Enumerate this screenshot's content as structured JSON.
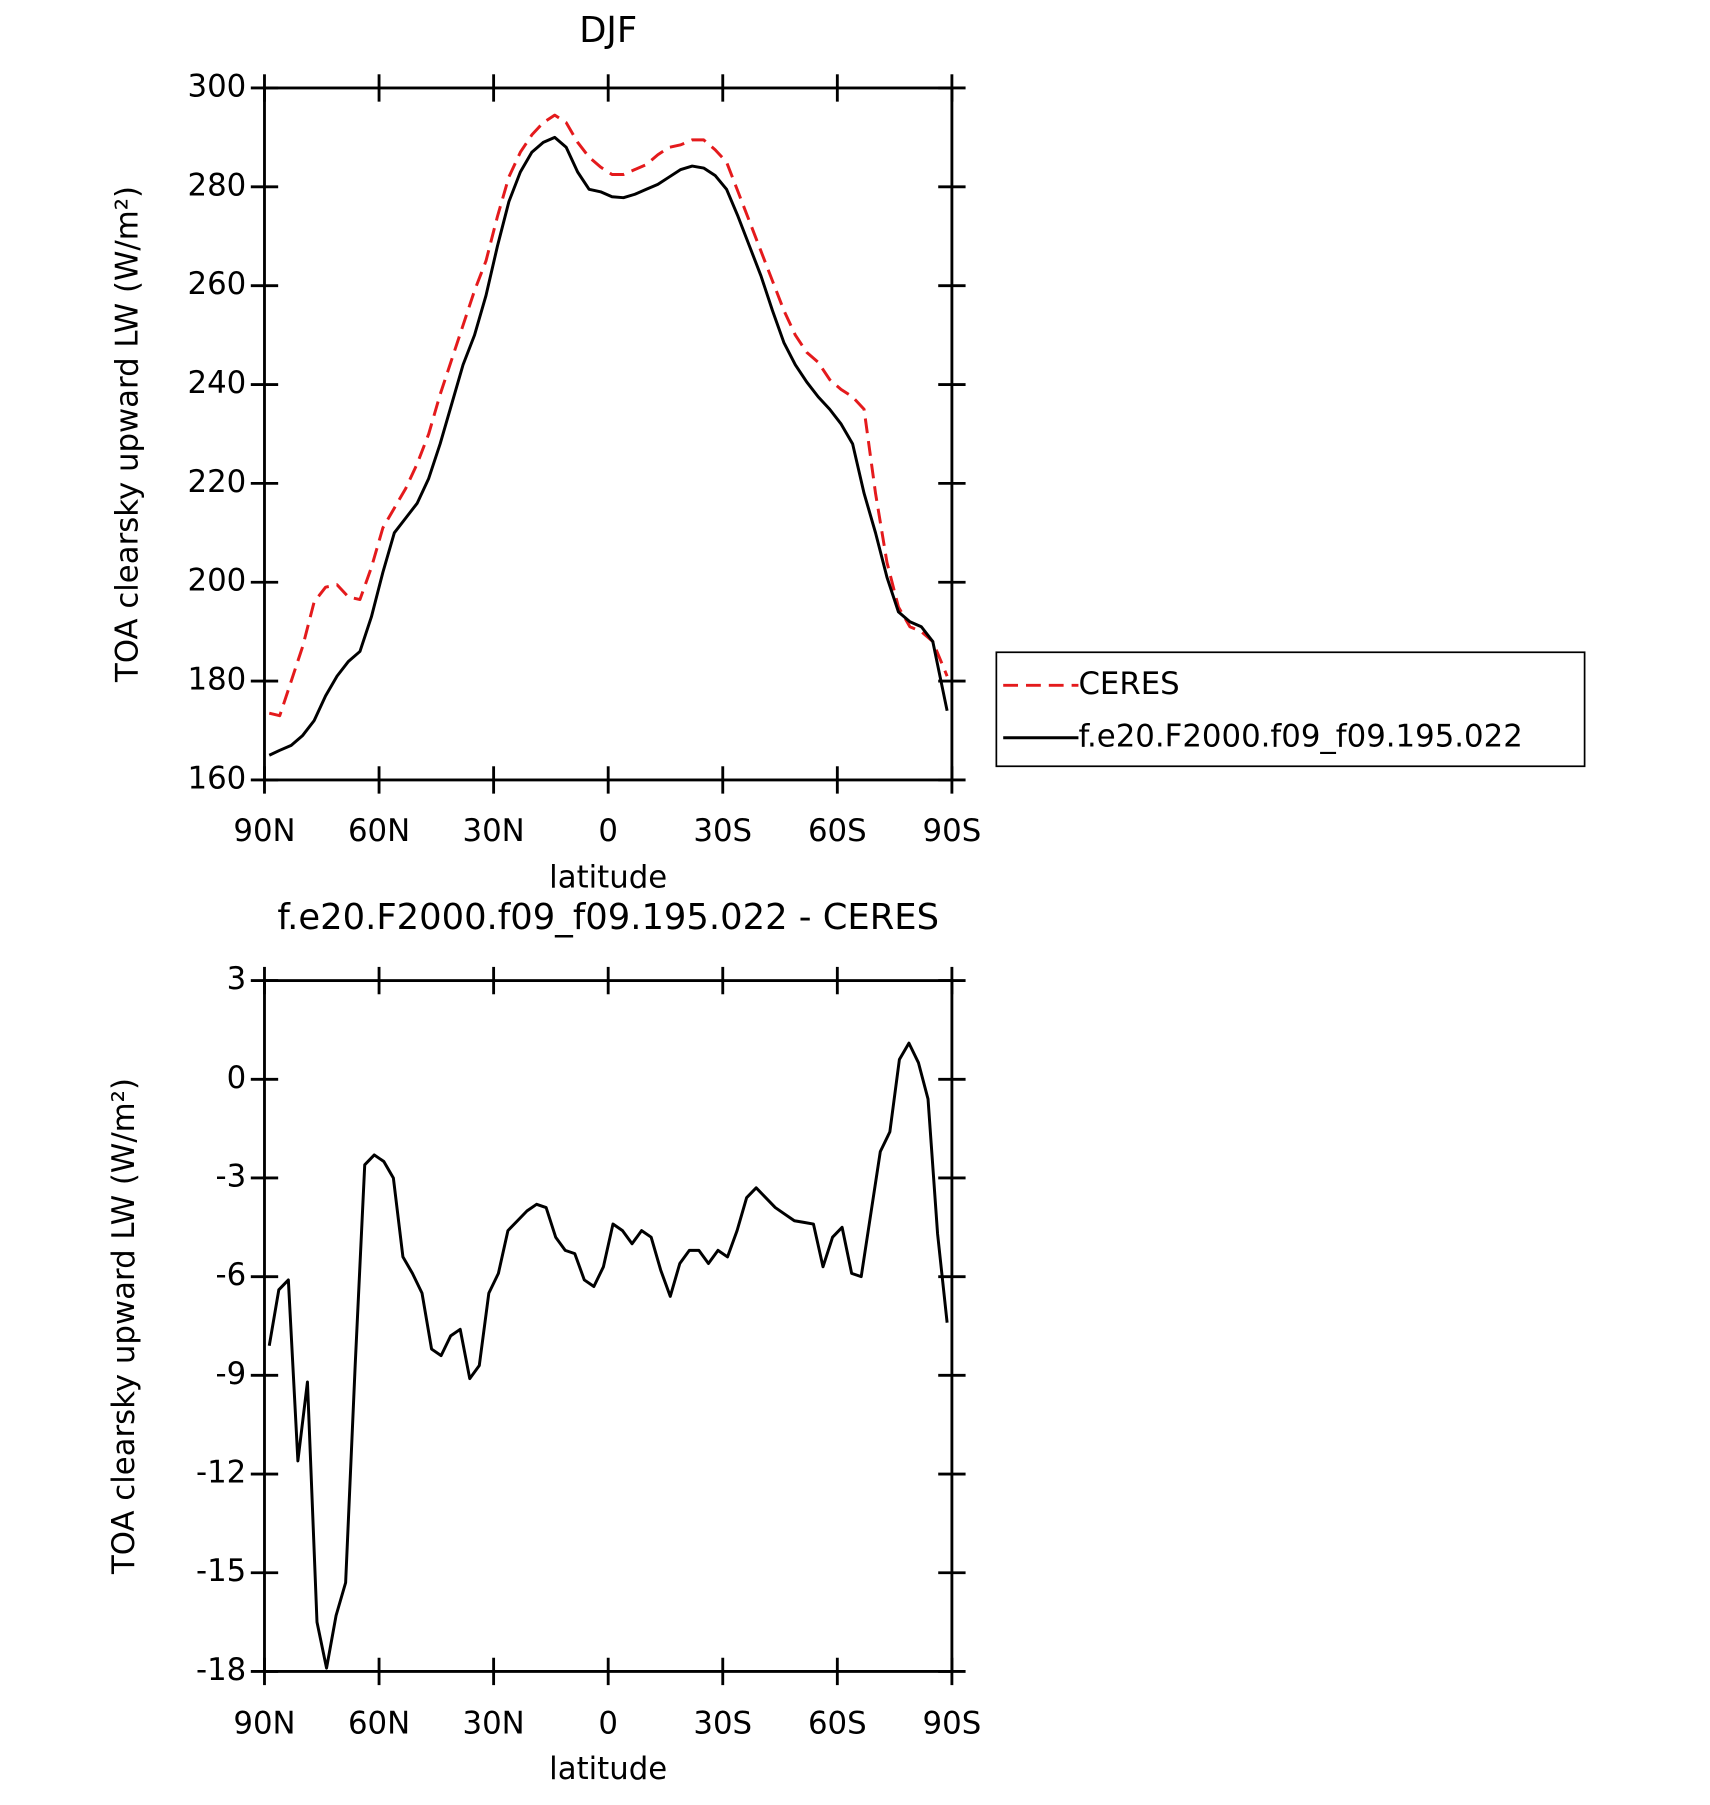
{
  "chart_data": [
    {
      "type": "line",
      "title": "DJF",
      "x_label": "latitude",
      "y_label": "TOA clearsky upward LW (W/m²)",
      "x": [
        88.75,
        86,
        83,
        80,
        77,
        74,
        71,
        68,
        65,
        62,
        59,
        56,
        53,
        50,
        47,
        44,
        41,
        38,
        35,
        32,
        29,
        26,
        23,
        20,
        17,
        14,
        11,
        8,
        5,
        2,
        -1,
        -4,
        -7,
        -10,
        -13,
        -16,
        -19,
        -22,
        -25,
        -28,
        -31,
        -34,
        -37,
        -40,
        -43,
        -46,
        -49,
        -52,
        -55,
        -58,
        -61,
        -64,
        -67,
        -70,
        -73,
        -76,
        -79,
        -82,
        -85,
        -88.75
      ],
      "series": [
        {
          "name": "CERES",
          "color": "#e41a1c",
          "dashed": true,
          "values": [
            173.5,
            173,
            180,
            187,
            196,
            199,
            199.5,
            197,
            196.5,
            203,
            211,
            215,
            219,
            224,
            230,
            238,
            245,
            252,
            259,
            265,
            274,
            282,
            287,
            290.5,
            293,
            294.5,
            293,
            289,
            286,
            284,
            282.5,
            282.5,
            283.5,
            284.5,
            286.5,
            288,
            288.5,
            289.5,
            289.5,
            287.5,
            285,
            279,
            273,
            267,
            261,
            255,
            250,
            246.5,
            244.5,
            241,
            239,
            237.5,
            235,
            218,
            204,
            195,
            191,
            190,
            188,
            181
          ]
        },
        {
          "name": "f.e20.F2000.f09_f09.195.022",
          "color": "#000000",
          "dashed": false,
          "values": [
            165,
            166,
            167,
            169,
            172,
            177,
            181,
            184,
            186,
            193,
            202,
            210,
            213,
            216,
            221,
            228,
            236,
            244,
            250,
            258,
            268,
            277,
            283,
            287,
            289,
            290,
            288,
            283,
            279.5,
            279,
            278,
            277.8,
            278.5,
            279.5,
            280.5,
            282,
            283.5,
            284.2,
            283.8,
            282.3,
            279.5,
            274,
            268,
            262,
            255,
            248.5,
            244,
            240.5,
            237.5,
            235,
            232,
            228,
            218,
            210,
            201,
            194,
            192,
            191,
            188,
            174
          ]
        }
      ],
      "xlim": [
        90,
        -90
      ],
      "xticks": [
        {
          "value": 90,
          "label": "90N"
        },
        {
          "value": 60,
          "label": "60N"
        },
        {
          "value": 30,
          "label": "30N"
        },
        0,
        {
          "value": -30,
          "label": "30S"
        },
        {
          "value": -60,
          "label": "60S"
        },
        {
          "value": -90,
          "label": "90S"
        }
      ],
      "ylim": [
        160,
        300
      ],
      "yticks": [
        160,
        180,
        200,
        220,
        240,
        260,
        280,
        300
      ],
      "grid": false,
      "legend": "outside-right"
    },
    {
      "type": "line",
      "title": "f.e20.F2000.f09_f09.195.022 - CERES",
      "x_label": "latitude",
      "y_label": "TOA clearsky upward LW (W/m²)",
      "x": [
        88.75,
        86.25,
        83.75,
        81.25,
        78.75,
        76.25,
        73.75,
        71.25,
        68.75,
        66.25,
        63.75,
        61.25,
        58.75,
        56.25,
        53.75,
        51.25,
        48.75,
        46.25,
        43.75,
        41.25,
        38.75,
        36.25,
        33.75,
        31.25,
        28.75,
        26.25,
        23.75,
        21.25,
        18.75,
        16.25,
        13.75,
        11.25,
        8.75,
        6.25,
        3.75,
        1.25,
        -1.25,
        -3.75,
        -6.25,
        -8.75,
        -11.25,
        -13.75,
        -16.25,
        -18.75,
        -21.25,
        -23.75,
        -26.25,
        -28.75,
        -31.25,
        -33.75,
        -36.25,
        -38.75,
        -41.25,
        -43.75,
        -46.25,
        -48.75,
        -51.25,
        -53.75,
        -56.25,
        -58.75,
        -61.25,
        -63.75,
        -66.25,
        -68.75,
        -71.25,
        -73.75,
        -76.25,
        -78.75,
        -81.25,
        -83.75,
        -86.25,
        -88.75
      ],
      "series": [
        {
          "color": "#000000",
          "dashed": false,
          "values": [
            -8.1,
            -6.4,
            -6.1,
            -11.6,
            -9.2,
            -16.5,
            -17.9,
            -16.3,
            -15.3,
            -8.7,
            -2.6,
            -2.3,
            -2.5,
            -3.0,
            -5.4,
            -5.9,
            -6.5,
            -8.2,
            -8.4,
            -7.8,
            -7.6,
            -9.1,
            -8.7,
            -6.5,
            -5.9,
            -4.6,
            -4.3,
            -4.0,
            -3.8,
            -3.9,
            -4.8,
            -5.2,
            -5.3,
            -6.1,
            -6.3,
            -5.7,
            -4.4,
            -4.6,
            -5.0,
            -4.6,
            -4.8,
            -5.8,
            -6.6,
            -5.6,
            -5.2,
            -5.2,
            -5.6,
            -5.2,
            -5.4,
            -4.6,
            -3.6,
            -3.3,
            -3.6,
            -3.9,
            -4.1,
            -4.3,
            -4.35,
            -4.4,
            -5.7,
            -4.8,
            -4.5,
            -5.9,
            -6.0,
            -4.1,
            -2.2,
            -1.6,
            0.6,
            1.1,
            0.5,
            -0.6,
            -4.7,
            -7.4
          ]
        }
      ],
      "xlim": [
        90,
        -90
      ],
      "xticks": [
        {
          "value": 90,
          "label": "90N"
        },
        {
          "value": 60,
          "label": "60N"
        },
        {
          "value": 30,
          "label": "30N"
        },
        0,
        {
          "value": -30,
          "label": "30S"
        },
        {
          "value": -60,
          "label": "60S"
        },
        {
          "value": -90,
          "label": "90S"
        }
      ],
      "ylim": [
        -18,
        3
      ],
      "yticks": [
        -18,
        -15,
        -12,
        -9,
        -6,
        -3,
        0,
        3
      ],
      "grid": false
    }
  ]
}
